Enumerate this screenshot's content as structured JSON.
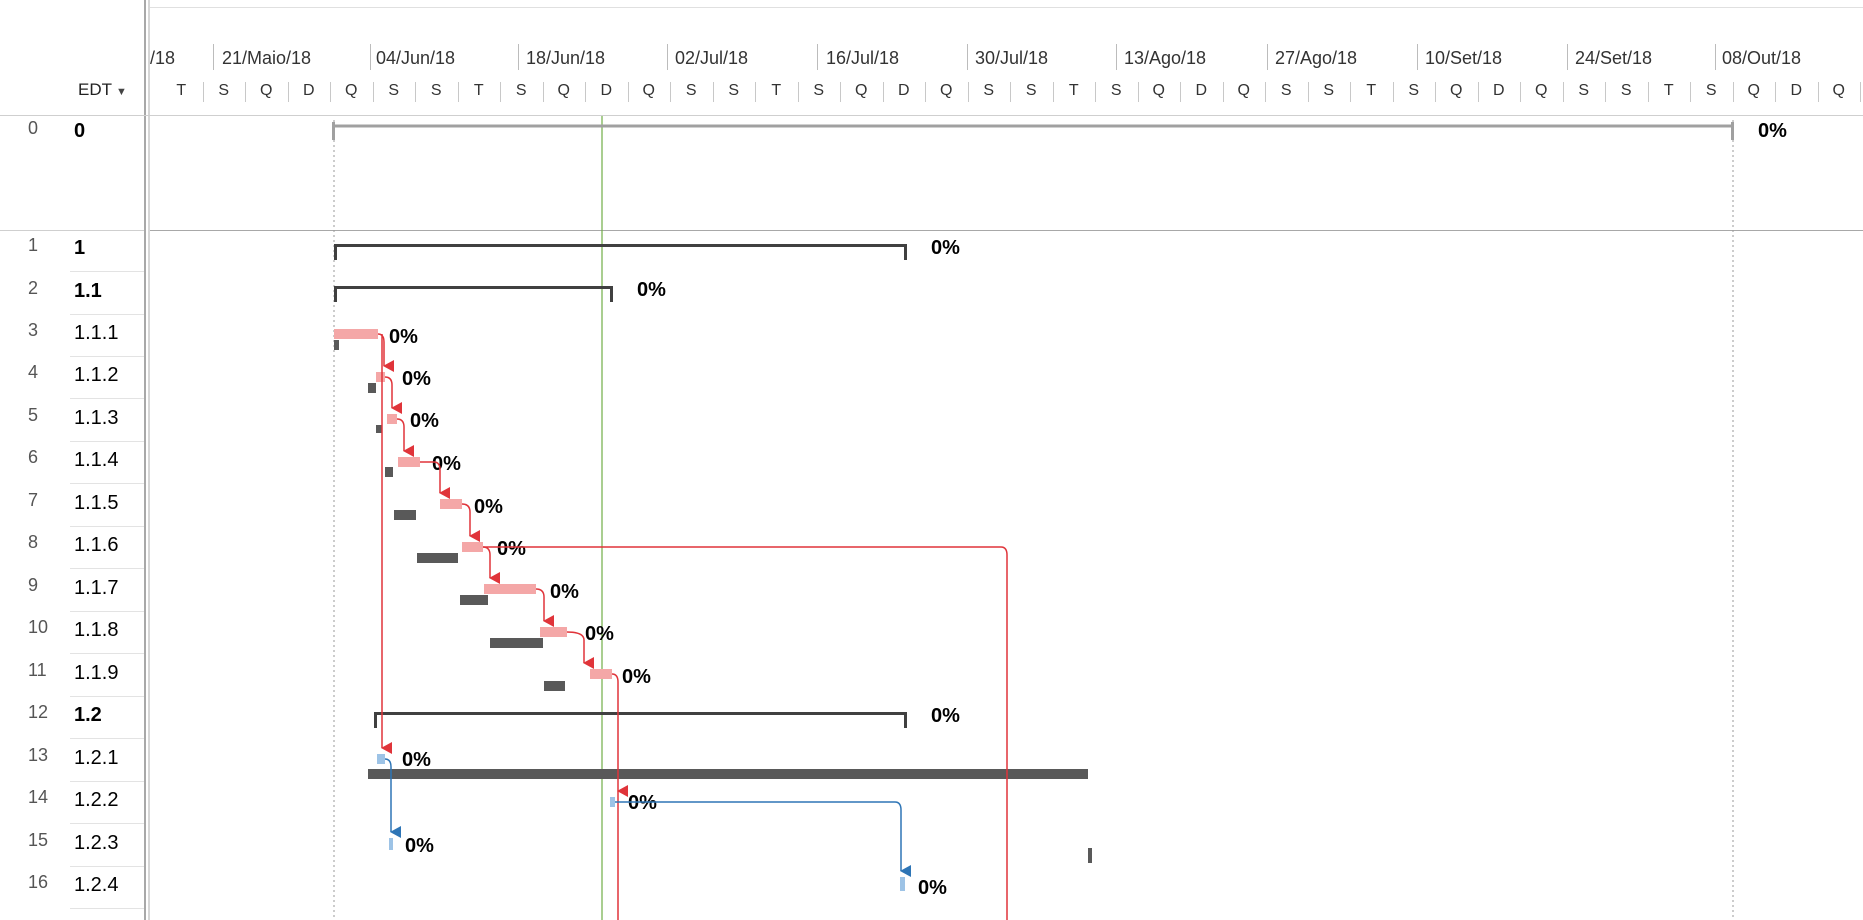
{
  "header": {
    "edt_label": "EDT",
    "timescale_top": [
      "/18",
      "21/Maio/18",
      "04/Jun/18",
      "18/Jun/18",
      "02/Jul/18",
      "16/Jul/18",
      "30/Jul/18",
      "13/Ago/18",
      "27/Ago/18",
      "10/Set/18",
      "24/Set/18",
      "08/Out/18"
    ],
    "timescale_bottom": [
      "T",
      "S",
      "Q",
      "D",
      "Q",
      "S",
      "S",
      "T",
      "S",
      "Q",
      "D",
      "Q",
      "S",
      "S",
      "T",
      "S",
      "Q",
      "D",
      "Q",
      "S",
      "S",
      "T",
      "S",
      "Q",
      "D",
      "Q",
      "S",
      "S",
      "T",
      "S",
      "Q",
      "D",
      "Q",
      "S",
      "S",
      "T",
      "S",
      "Q",
      "D",
      "Q"
    ]
  },
  "rows": [
    {
      "id": "0",
      "edt": "0",
      "bold": true,
      "pct": "0%"
    },
    {
      "id": "1",
      "edt": "1",
      "bold": true,
      "pct": "0%"
    },
    {
      "id": "2",
      "edt": "1.1",
      "bold": true,
      "pct": "0%"
    },
    {
      "id": "3",
      "edt": "1.1.1",
      "bold": false,
      "pct": "0%"
    },
    {
      "id": "4",
      "edt": "1.1.2",
      "bold": false,
      "pct": "0%"
    },
    {
      "id": "5",
      "edt": "1.1.3",
      "bold": false,
      "pct": "0%"
    },
    {
      "id": "6",
      "edt": "1.1.4",
      "bold": false,
      "pct": "0%"
    },
    {
      "id": "7",
      "edt": "1.1.5",
      "bold": false,
      "pct": "0%"
    },
    {
      "id": "8",
      "edt": "1.1.6",
      "bold": false,
      "pct": "0%"
    },
    {
      "id": "9",
      "edt": "1.1.7",
      "bold": false,
      "pct": "0%"
    },
    {
      "id": "10",
      "edt": "1.1.8",
      "bold": false,
      "pct": "0%"
    },
    {
      "id": "11",
      "edt": "1.1.9",
      "bold": false,
      "pct": "0%"
    },
    {
      "id": "12",
      "edt": "1.2",
      "bold": true,
      "pct": "0%"
    },
    {
      "id": "13",
      "edt": "1.2.1",
      "bold": false,
      "pct": "0%"
    },
    {
      "id": "14",
      "edt": "1.2.2",
      "bold": false,
      "pct": "0%"
    },
    {
      "id": "15",
      "edt": "1.2.3",
      "bold": false,
      "pct": "0%"
    },
    {
      "id": "16",
      "edt": "1.2.4",
      "bold": false,
      "pct": "0%"
    }
  ],
  "colors": {
    "critical_bar": "#f4a7a7",
    "critical_link": "#e0343a",
    "normal_bar": "#9dc3e6",
    "normal_link": "#2e75b6",
    "baseline": "#595959",
    "summary": "#404040",
    "status_date": "#70ad47"
  }
}
